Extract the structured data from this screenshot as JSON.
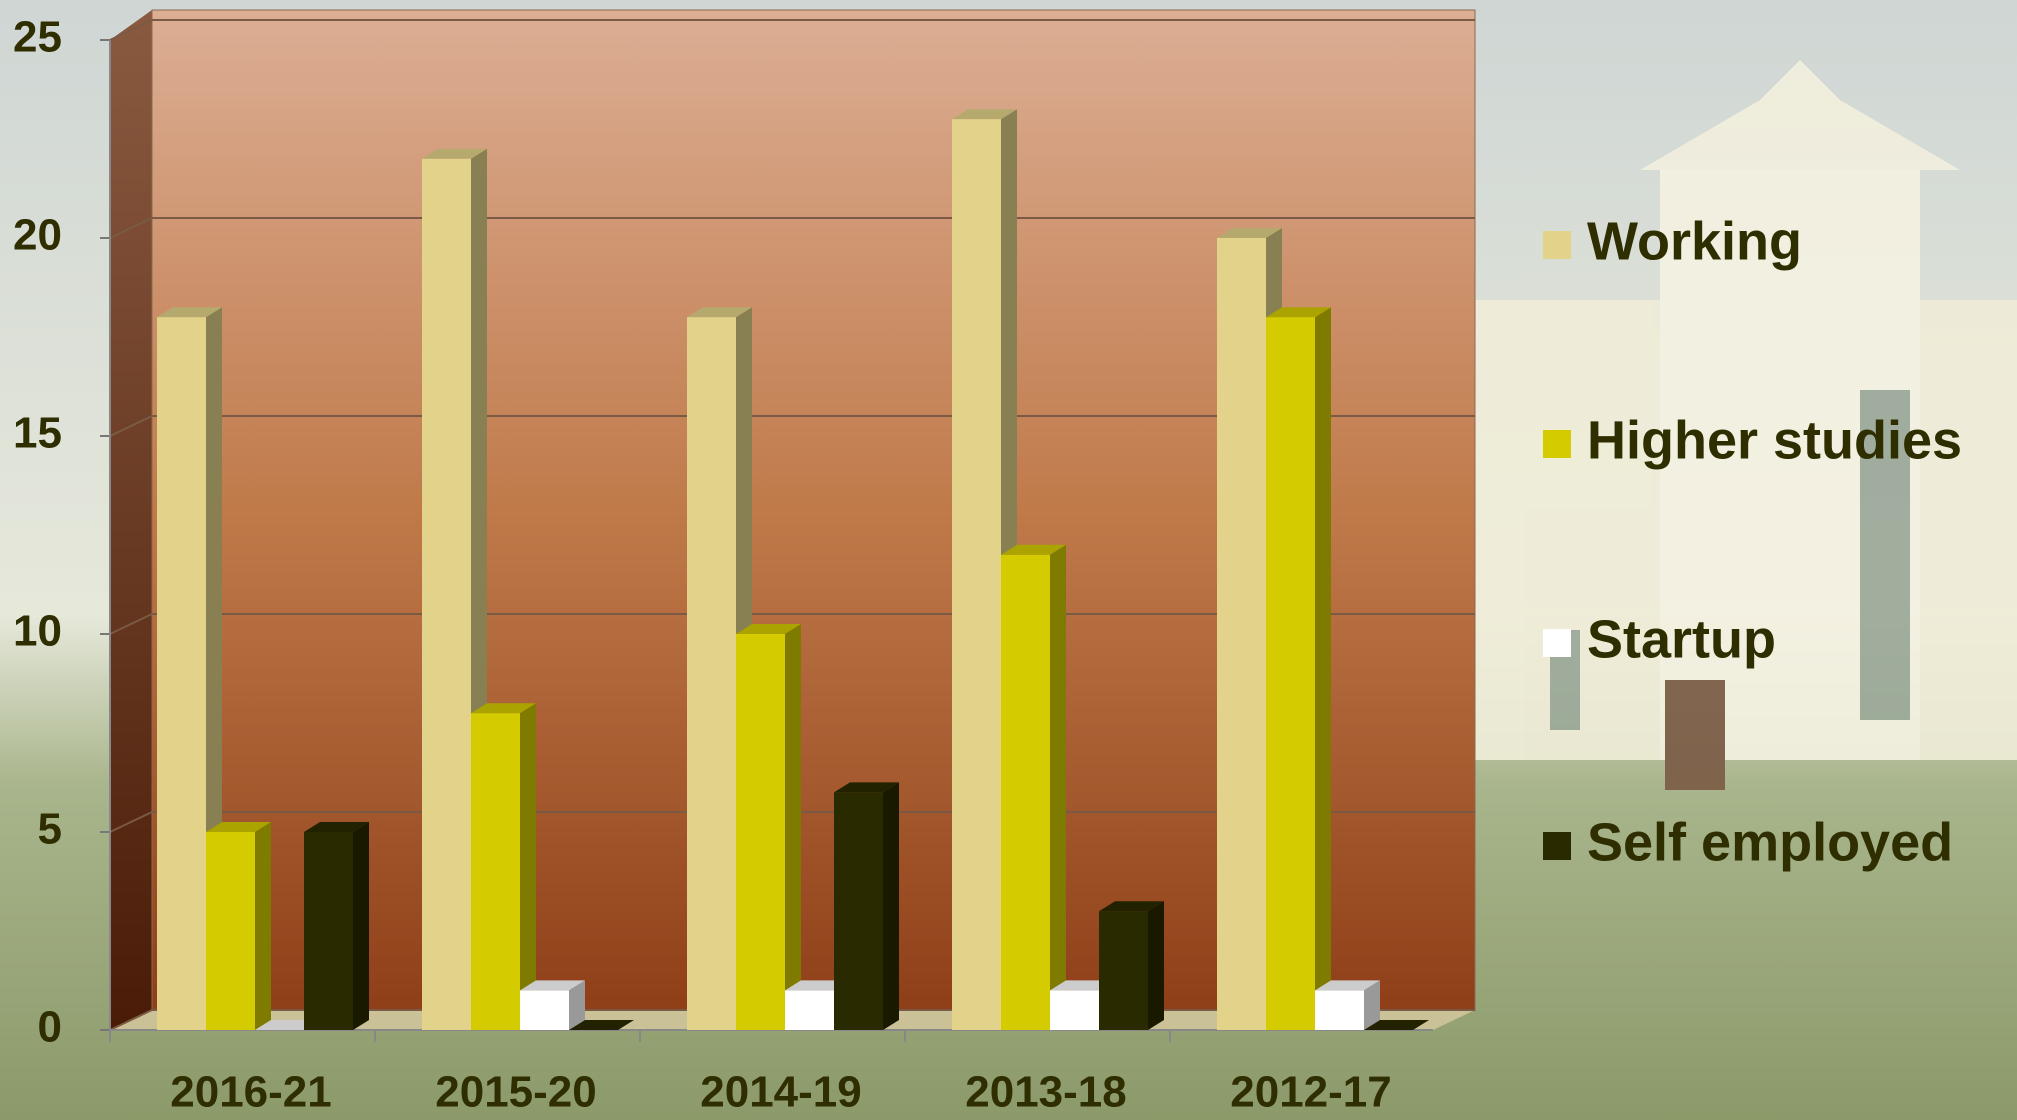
{
  "chart_data": {
    "type": "bar3d",
    "categories": [
      "2016-21",
      "2015-20",
      "2014-19",
      "2013-18",
      "2012-17"
    ],
    "series": [
      {
        "name": "Working",
        "color": "#e3d38a",
        "values": [
          18,
          22,
          18,
          23,
          20
        ]
      },
      {
        "name": "Higher studies",
        "color": "#d4cc00",
        "values": [
          5,
          8,
          10,
          12,
          18
        ]
      },
      {
        "name": "Startup",
        "color": "#ffffff",
        "values": [
          0,
          1,
          1,
          1,
          1
        ]
      },
      {
        "name": "Self employed",
        "color": "#2a2a00",
        "values": [
          5,
          0,
          6,
          3,
          0
        ]
      }
    ],
    "ylim": [
      0,
      25
    ],
    "yticks": [
      0,
      5,
      10,
      15,
      20,
      25
    ],
    "grid": true,
    "legend": "right"
  }
}
